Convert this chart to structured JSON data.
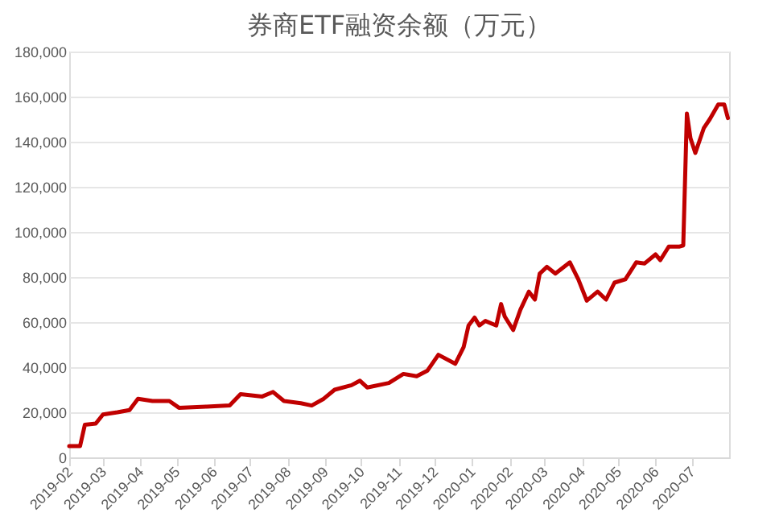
{
  "chart_data": {
    "type": "line",
    "title": "券商ETF融资余额（万元）",
    "x": [
      "2019-02-01",
      "2019-02-10",
      "2019-02-14",
      "2019-02-23",
      "2019-03-01",
      "2019-03-13",
      "2019-03-23",
      "2019-03-30",
      "2019-04-11",
      "2019-04-25",
      "2019-05-03",
      "2019-05-26",
      "2019-06-14",
      "2019-06-23",
      "2019-07-11",
      "2019-07-20",
      "2019-07-29",
      "2019-08-12",
      "2019-08-21",
      "2019-08-31",
      "2019-09-09",
      "2019-09-23",
      "2019-09-30",
      "2019-10-06",
      "2019-10-24",
      "2019-11-05",
      "2019-11-16",
      "2019-11-25",
      "2019-12-04",
      "2019-12-18",
      "2019-12-25",
      "2019-12-29",
      "2020-01-03",
      "2020-01-07",
      "2020-01-12",
      "2020-01-21",
      "2020-01-25",
      "2020-01-28",
      "2020-02-04",
      "2020-02-10",
      "2020-02-17",
      "2020-02-22",
      "2020-02-26",
      "2020-03-03",
      "2020-03-10",
      "2020-03-22",
      "2020-03-29",
      "2020-04-05",
      "2020-04-14",
      "2020-04-21",
      "2020-04-28",
      "2020-05-07",
      "2020-05-16",
      "2020-05-23",
      "2020-06-01",
      "2020-06-05",
      "2020-06-12",
      "2020-06-21",
      "2020-06-24",
      "2020-06-27",
      "2020-06-30",
      "2020-07-04",
      "2020-07-11",
      "2020-07-16",
      "2020-07-23",
      "2020-07-28",
      "2020-07-31"
    ],
    "series": [
      {
        "color": "#c00000",
        "values": [
          5000,
          5000,
          14500,
          15000,
          19000,
          20000,
          21000,
          26000,
          25000,
          25000,
          22000,
          22500,
          23000,
          28000,
          27000,
          29000,
          25000,
          24000,
          23000,
          26000,
          30000,
          32000,
          34000,
          31000,
          33000,
          37000,
          36000,
          38500,
          45500,
          41500,
          49000,
          58500,
          62000,
          58500,
          60500,
          58500,
          68000,
          62500,
          56500,
          65500,
          73500,
          70000,
          81500,
          84500,
          81500,
          86500,
          79000,
          69500,
          73500,
          70000,
          77500,
          79000,
          86500,
          86000,
          90000,
          87500,
          93500,
          93500,
          94000,
          152500,
          141500,
          135000,
          146000,
          150000,
          156500,
          156500,
          150500
        ]
      }
    ],
    "xlim": [
      "2019-02-01",
      "2020-08-01"
    ],
    "xticks": [
      "2019-02",
      "2019-03",
      "2019-04",
      "2019-05",
      "2019-06",
      "2019-07",
      "2019-08",
      "2019-09",
      "2019-10",
      "2019-11",
      "2019-12",
      "2020-01",
      "2020-02",
      "2020-03",
      "2020-04",
      "2020-05",
      "2020-06",
      "2020-07"
    ],
    "ylim": [
      0,
      180000
    ],
    "yticks": [
      0,
      {
        "value": 20000,
        "label": "20,000"
      },
      {
        "value": 40000,
        "label": "40,000"
      },
      {
        "value": 60000,
        "label": "60,000"
      },
      {
        "value": 80000,
        "label": "80,000"
      },
      {
        "value": 100000,
        "label": "100,000"
      },
      {
        "value": 120000,
        "label": "120,000"
      },
      {
        "value": 140000,
        "label": "140,000"
      },
      {
        "value": 160000,
        "label": "160,000"
      },
      {
        "value": 180000,
        "label": "180,000"
      }
    ],
    "grid": "y",
    "marker": "none",
    "line_style": "solid"
  }
}
